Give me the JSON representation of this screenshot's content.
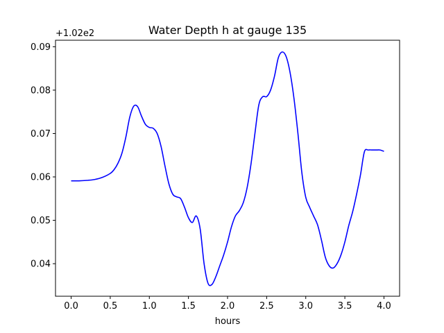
{
  "chart_data": {
    "type": "line",
    "title": "Water Depth h at gauge 135",
    "xlabel": "hours",
    "ylabel": "",
    "y_offset_label": "+1.02e2",
    "y_offset": 102,
    "xlim": [
      -0.2,
      4.2
    ],
    "ylim": [
      0.0325,
      0.0915
    ],
    "xticks": [
      0.0,
      0.5,
      1.0,
      1.5,
      2.0,
      2.5,
      3.0,
      3.5,
      4.0
    ],
    "xtick_labels": [
      "0.0",
      "0.5",
      "1.0",
      "1.5",
      "2.0",
      "2.5",
      "3.0",
      "3.5",
      "4.0"
    ],
    "yticks": [
      0.04,
      0.05,
      0.06,
      0.07,
      0.08,
      0.09
    ],
    "ytick_labels": [
      "0.04",
      "0.05",
      "0.06",
      "0.07",
      "0.08",
      "0.09"
    ],
    "grid": false,
    "series": [
      {
        "color": "#0000ff",
        "x": [
          0.0,
          0.1,
          0.2,
          0.3,
          0.4,
          0.5,
          0.55,
          0.6,
          0.65,
          0.7,
          0.75,
          0.8,
          0.85,
          0.9,
          0.95,
          1.0,
          1.05,
          1.1,
          1.15,
          1.2,
          1.25,
          1.3,
          1.35,
          1.4,
          1.45,
          1.5,
          1.55,
          1.6,
          1.65,
          1.7,
          1.75,
          1.8,
          1.85,
          1.9,
          1.95,
          2.0,
          2.05,
          2.1,
          2.15,
          2.2,
          2.25,
          2.3,
          2.35,
          2.4,
          2.45,
          2.5,
          2.55,
          2.6,
          2.65,
          2.7,
          2.75,
          2.8,
          2.85,
          2.9,
          2.95,
          3.0,
          3.05,
          3.1,
          3.15,
          3.2,
          3.25,
          3.3,
          3.35,
          3.4,
          3.45,
          3.5,
          3.55,
          3.6,
          3.65,
          3.7,
          3.75,
          3.8,
          3.85,
          3.9,
          3.95,
          4.0
        ],
        "y": [
          0.0591,
          0.0591,
          0.0592,
          0.0594,
          0.0599,
          0.0608,
          0.0617,
          0.0632,
          0.0655,
          0.0692,
          0.0738,
          0.0763,
          0.0762,
          0.074,
          0.0721,
          0.0714,
          0.0712,
          0.07,
          0.067,
          0.0625,
          0.0584,
          0.056,
          0.0554,
          0.055,
          0.053,
          0.0506,
          0.0495,
          0.051,
          0.048,
          0.04,
          0.0355,
          0.0352,
          0.037,
          0.0395,
          0.042,
          0.045,
          0.0485,
          0.051,
          0.0522,
          0.054,
          0.0575,
          0.063,
          0.07,
          0.0766,
          0.0785,
          0.0785,
          0.08,
          0.0832,
          0.0875,
          0.0888,
          0.0877,
          0.084,
          0.078,
          0.07,
          0.061,
          0.0553,
          0.053,
          0.051,
          0.049,
          0.0455,
          0.0415,
          0.0395,
          0.039,
          0.04,
          0.042,
          0.045,
          0.0488,
          0.052,
          0.056,
          0.0605,
          0.0658,
          0.0662,
          0.0662,
          0.0662,
          0.0662,
          0.0659
        ]
      }
    ]
  }
}
